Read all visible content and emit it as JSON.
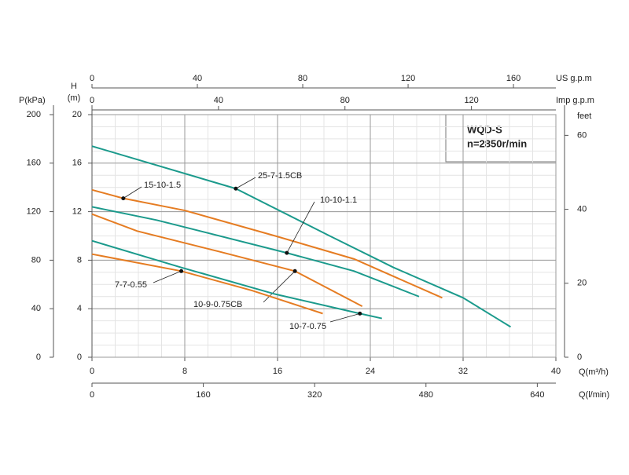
{
  "chart_data": {
    "type": "line",
    "title": "WQD-S",
    "subtitle": "n=2850r/min",
    "x_label": "Q(m³/h)",
    "y_label_lines": [
      "H",
      "(m)"
    ],
    "xlim": [
      0,
      40
    ],
    "xticks": [
      0,
      8,
      16,
      24,
      32,
      40
    ],
    "ylim": [
      0,
      20
    ],
    "yticks": [
      0,
      4,
      8,
      12,
      16,
      20
    ],
    "grid": true,
    "pressure_axis": {
      "label": "P(kPa)",
      "lim": [
        0,
        200
      ],
      "ticks": [
        0,
        40,
        80,
        120,
        160,
        200
      ]
    },
    "feet_axis": {
      "label": "feet",
      "lim": [
        0,
        65.6
      ],
      "ticks": [
        0,
        20,
        40,
        60
      ]
    },
    "us_gpm_axis": {
      "label": "US g.p.m",
      "lim": [
        0,
        176.1
      ],
      "ticks": [
        0,
        40,
        80,
        120,
        160
      ]
    },
    "imp_gpm_axis": {
      "label": "Imp g.p.m",
      "lim": [
        0,
        146.7
      ],
      "ticks": [
        0,
        40,
        80,
        120
      ]
    },
    "lpm_axis": {
      "label": "Q(l/min)",
      "lim": [
        0,
        666.7
      ],
      "ticks": [
        0,
        160,
        320,
        480,
        640
      ]
    },
    "series": [
      {
        "name": "25-7-1.5CB",
        "color": "#1b9a8c",
        "x": [
          0,
          12.4,
          20.5,
          26,
          32,
          36.1
        ],
        "values": [
          17.4,
          13.9,
          10,
          7.4,
          4.9,
          2.5
        ],
        "marker_index": 1
      },
      {
        "name": "15-10-1.5",
        "color": "#e57c22",
        "x": [
          0,
          2.7,
          8,
          15.8,
          22.6,
          30.2
        ],
        "values": [
          13.8,
          13.1,
          12.1,
          10,
          8.1,
          4.9
        ],
        "marker_index": 1
      },
      {
        "name": "10-10-1.1",
        "color": "#1b9a8c",
        "x": [
          0,
          5.6,
          16.8,
          22.6,
          28.2
        ],
        "values": [
          12.4,
          11.3,
          8.6,
          7.1,
          5.0
        ],
        "marker_index": 2
      },
      {
        "name": "10-9-0.75CB",
        "color": "#e57c22",
        "x": [
          0,
          3.9,
          11,
          17.5,
          23.3
        ],
        "values": [
          11.8,
          10.4,
          8.7,
          7.1,
          4.2
        ],
        "marker_index": 3
      },
      {
        "name": "10-7-0.75",
        "color": "#1b9a8c",
        "x": [
          0,
          7.7,
          15.8,
          23.1,
          25
        ],
        "values": [
          9.6,
          7.4,
          5.2,
          3.6,
          3.2
        ],
        "marker_index": 3
      },
      {
        "name": "7-7-0.55",
        "color": "#e57c22",
        "x": [
          0,
          7.7,
          13.8,
          19.9
        ],
        "values": [
          8.5,
          7.1,
          5.5,
          3.6
        ],
        "marker_index": 1
      }
    ]
  }
}
